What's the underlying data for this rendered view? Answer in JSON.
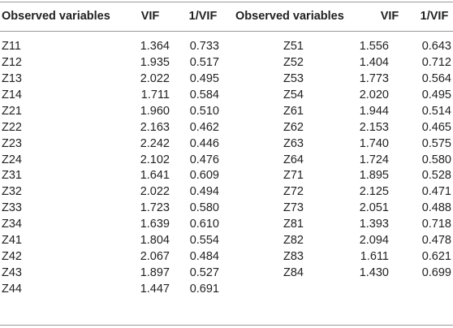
{
  "table": {
    "header": [
      "Observed variables",
      "VIF",
      "1/VIF",
      "Observed variables",
      "VIF",
      "1/VIF"
    ],
    "rows": [
      [
        "Z11",
        "1.364",
        "0.733",
        "Z51",
        "1.556",
        "0.643"
      ],
      [
        "Z12",
        "1.935",
        "0.517",
        "Z52",
        "1.404",
        "0.712"
      ],
      [
        "Z13",
        "2.022",
        "0.495",
        "Z53",
        "1.773",
        "0.564"
      ],
      [
        "Z14",
        "1.711",
        "0.584",
        "Z54",
        "2.020",
        "0.495"
      ],
      [
        "Z21",
        "1.960",
        "0.510",
        "Z61",
        "1.944",
        "0.514"
      ],
      [
        "Z22",
        "2.163",
        "0.462",
        "Z62",
        "2.153",
        "0.465"
      ],
      [
        "Z23",
        "2.242",
        "0.446",
        "Z63",
        "1.740",
        "0.575"
      ],
      [
        "Z24",
        "2.102",
        "0.476",
        "Z64",
        "1.724",
        "0.580"
      ],
      [
        "Z31",
        "1.641",
        "0.609",
        "Z71",
        "1.895",
        "0.528"
      ],
      [
        "Z32",
        "2.022",
        "0.494",
        "Z72",
        "2.125",
        "0.471"
      ],
      [
        "Z33",
        "1.723",
        "0.580",
        "Z73",
        "2.051",
        "0.488"
      ],
      [
        "Z34",
        "1.639",
        "0.610",
        "Z81",
        "1.393",
        "0.718"
      ],
      [
        "Z41",
        "1.804",
        "0.554",
        "Z82",
        "2.094",
        "0.478"
      ],
      [
        "Z42",
        "2.067",
        "0.484",
        "Z83",
        "1.611",
        "0.621"
      ],
      [
        "Z43",
        "1.897",
        "0.527",
        "Z84",
        "1.430",
        "0.699"
      ],
      [
        "Z44",
        "1.447",
        "0.691"
      ]
    ]
  }
}
